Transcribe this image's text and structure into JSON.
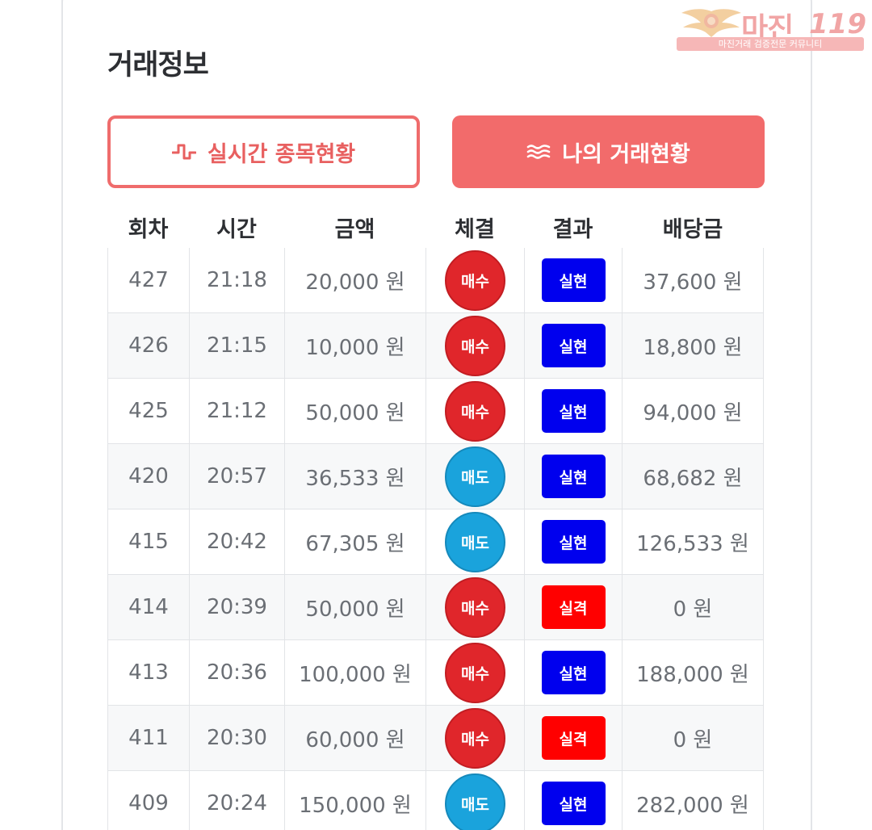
{
  "section_title": "거래정보",
  "watermark": {
    "brand": "마진",
    "number": "119",
    "tagline": "마진거래 검증전문 커뮤니티"
  },
  "tabs": [
    {
      "label": "실시간 종목현황",
      "icon": "pulse-icon",
      "active": false
    },
    {
      "label": "나의 거래현황",
      "icon": "waves-icon",
      "active": true
    }
  ],
  "table": {
    "headers": [
      "회차",
      "시간",
      "금액",
      "체결",
      "결과",
      "배당금"
    ],
    "rows": [
      {
        "round": "427",
        "time": "21:18",
        "amount": "20,000 원",
        "trade": "매수",
        "trade_type": "buy",
        "result": "실현",
        "result_type": "win",
        "payout": "37,600 원"
      },
      {
        "round": "426",
        "time": "21:15",
        "amount": "10,000 원",
        "trade": "매수",
        "trade_type": "buy",
        "result": "실현",
        "result_type": "win",
        "payout": "18,800 원"
      },
      {
        "round": "425",
        "time": "21:12",
        "amount": "50,000 원",
        "trade": "매수",
        "trade_type": "buy",
        "result": "실현",
        "result_type": "win",
        "payout": "94,000 원"
      },
      {
        "round": "420",
        "time": "20:57",
        "amount": "36,533 원",
        "trade": "매도",
        "trade_type": "sell",
        "result": "실현",
        "result_type": "win",
        "payout": "68,682 원"
      },
      {
        "round": "415",
        "time": "20:42",
        "amount": "67,305 원",
        "trade": "매도",
        "trade_type": "sell",
        "result": "실현",
        "result_type": "win",
        "payout": "126,533 원"
      },
      {
        "round": "414",
        "time": "20:39",
        "amount": "50,000 원",
        "trade": "매수",
        "trade_type": "buy",
        "result": "실격",
        "result_type": "lose",
        "payout": "0 원"
      },
      {
        "round": "413",
        "time": "20:36",
        "amount": "100,000 원",
        "trade": "매수",
        "trade_type": "buy",
        "result": "실현",
        "result_type": "win",
        "payout": "188,000 원"
      },
      {
        "round": "411",
        "time": "20:30",
        "amount": "60,000 원",
        "trade": "매수",
        "trade_type": "buy",
        "result": "실격",
        "result_type": "lose",
        "payout": "0 원"
      },
      {
        "round": "409",
        "time": "20:24",
        "amount": "150,000 원",
        "trade": "매도",
        "trade_type": "sell",
        "result": "실현",
        "result_type": "win",
        "payout": "282,000 원"
      }
    ]
  },
  "colors": {
    "accent": "#f26b6b",
    "buy": "#e0262b",
    "sell": "#1aa3dc",
    "win": "#0000ee",
    "lose": "#ff0000"
  }
}
